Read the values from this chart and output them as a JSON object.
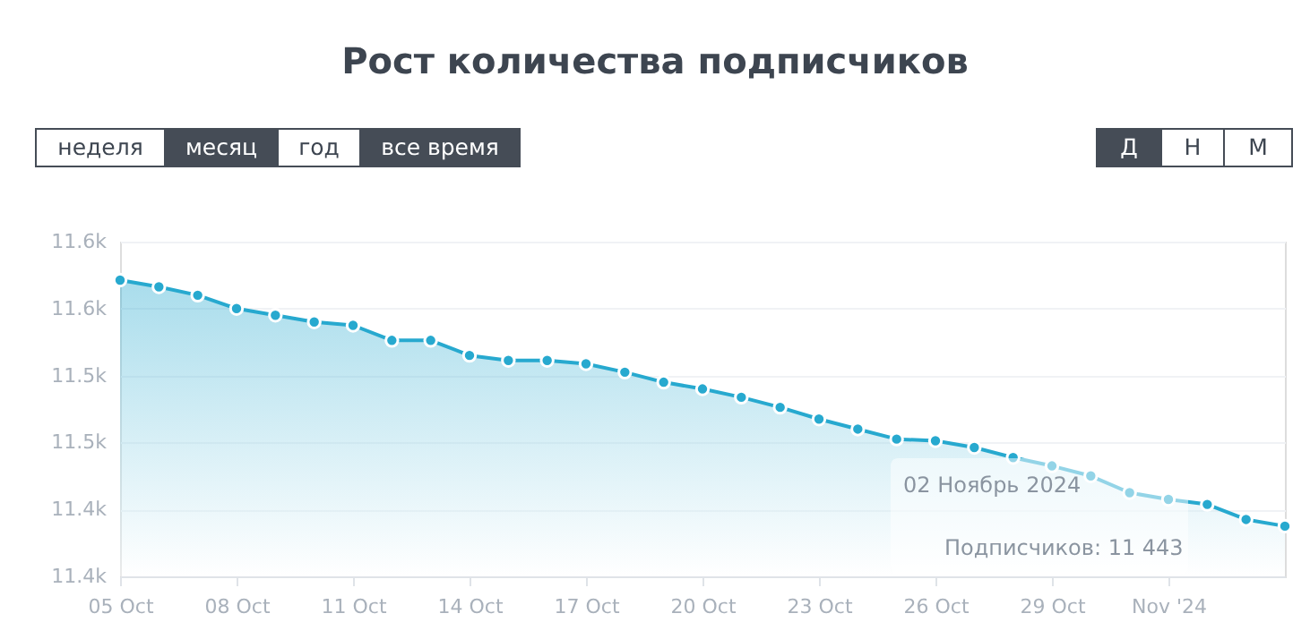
{
  "chart_data": {
    "type": "area",
    "title": "Рост количества подписчиков",
    "x": [
      "2024-10-05",
      "2024-10-06",
      "2024-10-07",
      "2024-10-08",
      "2024-10-09",
      "2024-10-10",
      "2024-10-11",
      "2024-10-12",
      "2024-10-13",
      "2024-10-14",
      "2024-10-15",
      "2024-10-16",
      "2024-10-17",
      "2024-10-18",
      "2024-10-19",
      "2024-10-20",
      "2024-10-21",
      "2024-10-22",
      "2024-10-23",
      "2024-10-24",
      "2024-10-25",
      "2024-10-26",
      "2024-10-27",
      "2024-10-28",
      "2024-10-29",
      "2024-10-30",
      "2024-10-31",
      "2024-11-01",
      "2024-11-02",
      "2024-11-03",
      "2024-11-04"
    ],
    "series": [
      {
        "color": "#27a9cf",
        "values": [
          11577,
          11573,
          11568,
          11560,
          11556,
          11552,
          11550,
          11541,
          11541,
          11532,
          11529,
          11529,
          11527,
          11522,
          11516,
          11512,
          11507,
          11501,
          11494,
          11488,
          11482,
          11481,
          11477,
          11471,
          11466,
          11460,
          11450,
          11446,
          11443,
          11434,
          11430
        ]
      }
    ],
    "xlim": [
      "2024-10-05",
      "2024-11-04"
    ],
    "xticks": [
      {
        "value": "2024-10-05",
        "label": "05 Oct"
      },
      {
        "value": "2024-10-08",
        "label": "08 Oct"
      },
      {
        "value": "2024-10-11",
        "label": "11 Oct"
      },
      {
        "value": "2024-10-14",
        "label": "14 Oct"
      },
      {
        "value": "2024-10-17",
        "label": "17 Oct"
      },
      {
        "value": "2024-10-20",
        "label": "20 Oct"
      },
      {
        "value": "2024-10-23",
        "label": "23 Oct"
      },
      {
        "value": "2024-10-26",
        "label": "26 Oct"
      },
      {
        "value": "2024-10-29",
        "label": "29 Oct"
      },
      {
        "value": "2024-11-01",
        "label": "Nov '24"
      }
    ],
    "ylim": [
      11400,
      11600
    ],
    "yticks": [
      {
        "value": 11400,
        "label": "11.4k"
      },
      {
        "value": 11440,
        "label": "11.4k"
      },
      {
        "value": 11480,
        "label": "11.5k"
      },
      {
        "value": 11520,
        "label": "11.5k"
      },
      {
        "value": 11560,
        "label": "11.6k"
      },
      {
        "value": 11600,
        "label": "11.6k"
      }
    ],
    "grid": "y",
    "marker": "circle",
    "line_style": "solid",
    "annotations": [
      "неделя",
      "месяц",
      "год",
      "все время",
      "Д",
      "Н",
      "М",
      "02 Ноябрь 2024",
      "Подписчиков: 11 443"
    ]
  }
}
